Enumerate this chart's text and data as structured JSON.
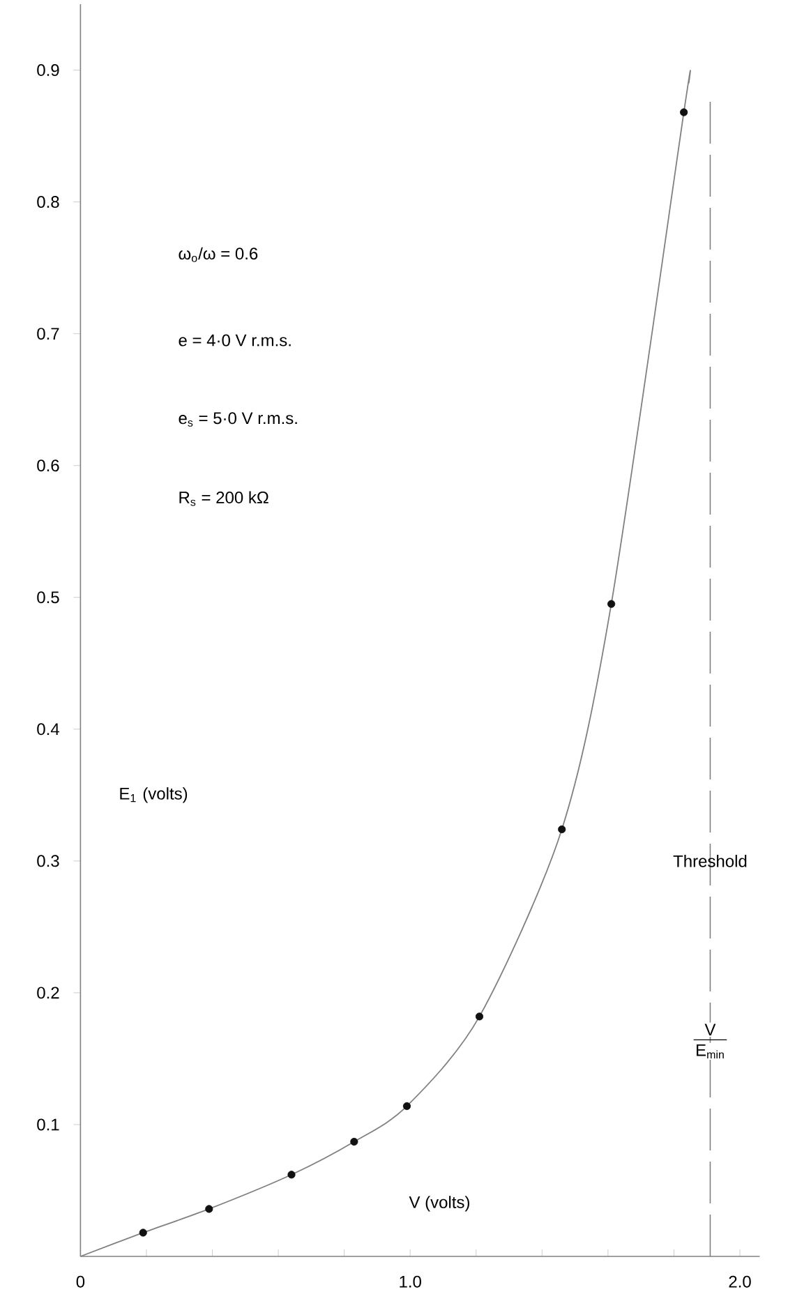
{
  "chart_data": {
    "type": "line",
    "xlabel": "V (volts)",
    "ylabel": "E$_{1}$ (volts)",
    "xlim": [
      0,
      2.06
    ],
    "ylim": [
      0,
      0.95
    ],
    "xticks": [
      0,
      {
        "value": 0.2,
        "label": null
      },
      {
        "value": 0.4,
        "label": null
      },
      {
        "value": 0.6,
        "label": null
      },
      {
        "value": 0.8,
        "label": null
      },
      {
        "value": 1.0,
        "label": "1.0"
      },
      {
        "value": 1.2,
        "label": null
      },
      {
        "value": 1.4,
        "label": null
      },
      {
        "value": 1.6,
        "label": null
      },
      {
        "value": 1.8,
        "label": null
      },
      {
        "value": 2.0,
        "label": "2.0"
      }
    ],
    "yticks": [
      0.1,
      0.2,
      0.3,
      0.4,
      0.5,
      0.6,
      0.7,
      0.8,
      0.9
    ],
    "series": [
      {
        "type": "line",
        "color": "#808080",
        "marker": "none",
        "x": [
          0,
          0.19,
          0.39,
          0.64,
          0.83,
          0.99,
          1.21,
          1.46,
          1.61,
          1.83,
          1.845
        ],
        "values": [
          0,
          0.018,
          0.036,
          0.062,
          0.087,
          0.114,
          0.182,
          0.324,
          0.495,
          0.868,
          0.89
        ]
      },
      {
        "type": "scatter",
        "color": "#111111",
        "marker": "circle",
        "x": [
          0.19,
          0.39,
          0.64,
          0.83,
          0.99,
          1.21,
          1.46,
          1.61,
          1.83
        ],
        "values": [
          0.018,
          0.036,
          0.062,
          0.087,
          0.114,
          0.182,
          0.324,
          0.495,
          0.868
        ]
      }
    ],
    "ref_lines": [
      {
        "axis": "x",
        "value": 1.91,
        "label": "Threshold",
        "color": "#808080",
        "line_style": "dashed"
      }
    ],
    "annotations": [
      "ω$_{o}$/ω = 0.6",
      "e = 4·0 V r.m.s.",
      "e$_{s}$ = 5·0 V r.m.s.",
      "R$_{s}$ = 200 kΩ",
      "V",
      "E$_{min}$"
    ],
    "grid": false
  }
}
